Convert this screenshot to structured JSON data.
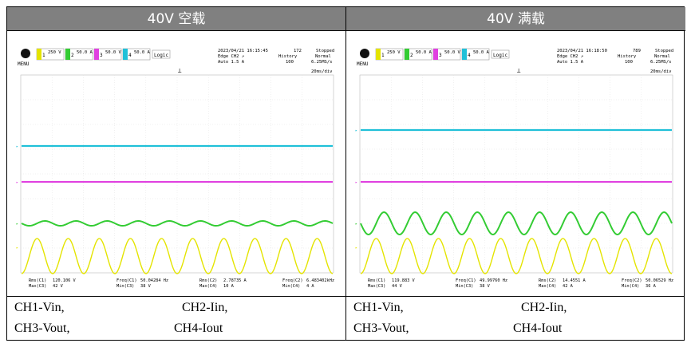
{
  "panels": [
    {
      "title": "40V 空载",
      "scope": {
        "menu_label": "MENU",
        "ch1": {
          "num": "1",
          "scale": "250 V"
        },
        "ch2": {
          "num": "2",
          "scale": "50.0 A"
        },
        "ch3": {
          "num": "3",
          "scale": "50.0 V"
        },
        "ch4": {
          "num": "4",
          "scale": "50.0 A"
        },
        "logic_label": "Logic",
        "timestamp": "2023/04/21 16:15:45",
        "count": "172",
        "run_state": "Stopped",
        "trigger": "Edge CH2 ↗",
        "trigger_mode": "Auto 1.5 A",
        "history_label": "History",
        "history_value": "100",
        "acq_mode": "Normal",
        "sample_rate": "6.25MS/s",
        "timebase": "20ms/div",
        "measurements": [
          {
            "label": "Rms(C1)",
            "value": "120.106 V"
          },
          {
            "label": "Freq(C1)",
            "value": "50.04284 Hz"
          },
          {
            "label": "Rms(C2)",
            "value": "2.78735 A"
          },
          {
            "label": "Freq(C2)",
            "value": "6.483402kHz"
          },
          {
            "label": "Max(C3)",
            "value": "42 V"
          },
          {
            "label": "Min(C3)",
            "value": "38 V"
          },
          {
            "label": "Max(C4)",
            "value": "10 A"
          },
          {
            "label": "Min(C4)",
            "value": "4 A"
          }
        ],
        "traces": {
          "ch2_amp": 3,
          "ch4_y": 131,
          "ch3_y": 176
        }
      }
    },
    {
      "title": "40V 满载",
      "scope": {
        "menu_label": "MENU",
        "ch1": {
          "num": "1",
          "scale": "250 V"
        },
        "ch2": {
          "num": "2",
          "scale": "50.0 A"
        },
        "ch3": {
          "num": "3",
          "scale": "50.0 V"
        },
        "ch4": {
          "num": "4",
          "scale": "50.0 A"
        },
        "logic_label": "Logic",
        "timestamp": "2023/04/21 16:18:50",
        "count": "789",
        "run_state": "Stopped",
        "trigger": "Edge CH2 ↗",
        "trigger_mode": "Auto 1.5 A",
        "history_label": "History",
        "history_value": "100",
        "acq_mode": "Normal",
        "sample_rate": "6.25MS/s",
        "timebase": "20ms/div",
        "measurements": [
          {
            "label": "Rms(C1)",
            "value": "119.883 V"
          },
          {
            "label": "Freq(C1)",
            "value": "49.99760 Hz"
          },
          {
            "label": "Rms(C2)",
            "value": "14.4551 A"
          },
          {
            "label": "Freq(C2)",
            "value": "50.06529 Hz"
          },
          {
            "label": "Max(C3)",
            "value": "44 V"
          },
          {
            "label": "Min(C3)",
            "value": "38 V"
          },
          {
            "label": "Max(C4)",
            "value": "42 A"
          },
          {
            "label": "Min(C4)",
            "value": "36 A"
          }
        ],
        "traces": {
          "ch2_amp": 14,
          "ch4_y": 111,
          "ch3_y": 176
        }
      }
    }
  ],
  "captions": {
    "left": {
      "ch1": "CH1-Vin,",
      "ch2": "CH2-Iin,",
      "ch3": "CH3-Vout,",
      "ch4": "CH4-Iout"
    },
    "right": {
      "ch1": "CH1-Vin,",
      "ch2": "CH2-Iin,",
      "ch3": "CH3-Vout,",
      "ch4": "CH4-Iout"
    }
  },
  "colors": {
    "ch1": "#e4e400",
    "ch2": "#33cc33",
    "ch3": "#e040e0",
    "ch4": "#20c0d8",
    "header": "#808080"
  }
}
